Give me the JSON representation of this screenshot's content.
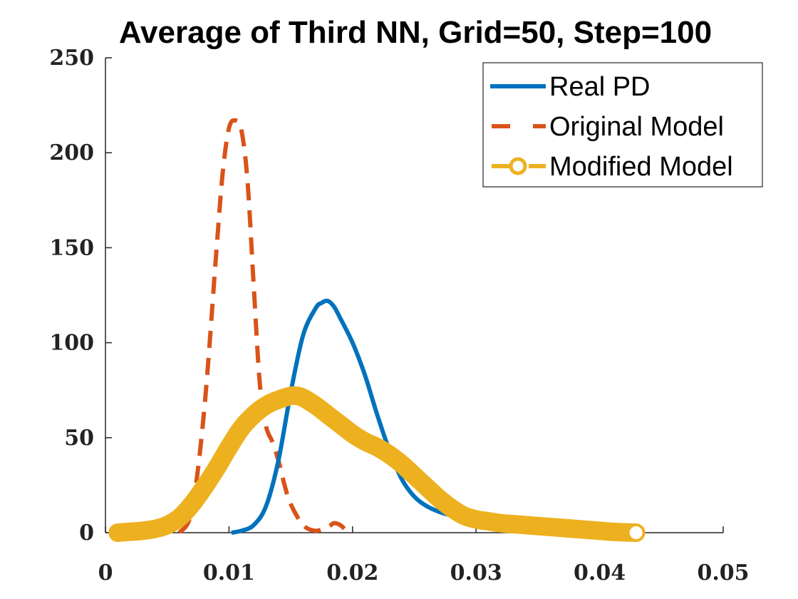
{
  "chart_data": {
    "type": "line",
    "title": "Average of Third NN, Grid=50, Step=100",
    "xlabel": "",
    "ylabel": "",
    "xlim": [
      0,
      0.05
    ],
    "ylim": [
      0,
      250
    ],
    "xticks": [
      0,
      0.01,
      0.02,
      0.03,
      0.04,
      0.05
    ],
    "xtick_labels": [
      "0",
      "0.01",
      "0.02",
      "0.03",
      "0.04",
      "0.05"
    ],
    "yticks": [
      0,
      50,
      100,
      150,
      200,
      250
    ],
    "ytick_labels": [
      "0",
      "50",
      "100",
      "150",
      "200",
      "250"
    ],
    "grid": false,
    "legend_position": "top-right",
    "series": [
      {
        "name": "Real PD",
        "color": "#0072BD",
        "style": "solid",
        "x": [
          0.0102,
          0.011,
          0.012,
          0.013,
          0.014,
          0.015,
          0.016,
          0.017,
          0.0175,
          0.018,
          0.0185,
          0.019,
          0.02,
          0.021,
          0.022,
          0.023,
          0.024,
          0.025,
          0.026,
          0.027,
          0.028,
          0.029,
          0.03,
          0.032,
          0.034,
          0.036,
          0.038,
          0.04,
          0.0425
        ],
        "values": [
          0,
          1,
          4,
          14,
          38,
          74,
          104,
          118,
          121,
          122,
          119,
          113,
          100,
          83,
          62,
          43,
          28,
          19,
          14,
          11,
          9,
          7,
          6,
          4.5,
          3.5,
          2.5,
          1.5,
          1,
          0.5
        ]
      },
      {
        "name": "Original Model",
        "color": "#D95319",
        "style": "dashed",
        "x": [
          0.006,
          0.007,
          0.008,
          0.009,
          0.0095,
          0.01,
          0.0105,
          0.011,
          0.0115,
          0.012,
          0.0125,
          0.013,
          0.0135,
          0.014,
          0.0145,
          0.015,
          0.016,
          0.017,
          0.018,
          0.0185,
          0.019,
          0.0195
        ],
        "values": [
          0,
          12,
          65,
          150,
          190,
          213,
          217,
          212,
          185,
          130,
          78,
          56,
          48,
          38,
          25,
          15,
          4,
          1,
          3,
          5,
          4,
          1
        ]
      },
      {
        "name": "Modified Model",
        "color": "#EDB120",
        "style": "dashed-circle",
        "x": [
          0.001,
          0.002,
          0.003,
          0.004,
          0.005,
          0.006,
          0.007,
          0.008,
          0.009,
          0.01,
          0.011,
          0.012,
          0.013,
          0.014,
          0.015,
          0.0155,
          0.016,
          0.017,
          0.018,
          0.019,
          0.02,
          0.021,
          0.022,
          0.023,
          0.024,
          0.025,
          0.026,
          0.027,
          0.028,
          0.029,
          0.03,
          0.031,
          0.032,
          0.033,
          0.034,
          0.035,
          0.036,
          0.037,
          0.038,
          0.039,
          0.04,
          0.041,
          0.042,
          0.043
        ],
        "values": [
          0,
          0.5,
          1,
          2,
          4,
          8,
          15,
          24,
          34,
          45,
          55,
          62,
          67,
          70,
          72,
          72,
          71,
          67,
          62,
          57,
          52,
          48,
          45,
          41,
          36,
          30,
          24,
          18,
          13,
          9,
          7,
          6,
          5,
          4.5,
          4,
          3.5,
          3,
          2.5,
          2,
          1.5,
          1,
          0.5,
          0.2,
          0
        ]
      }
    ]
  }
}
